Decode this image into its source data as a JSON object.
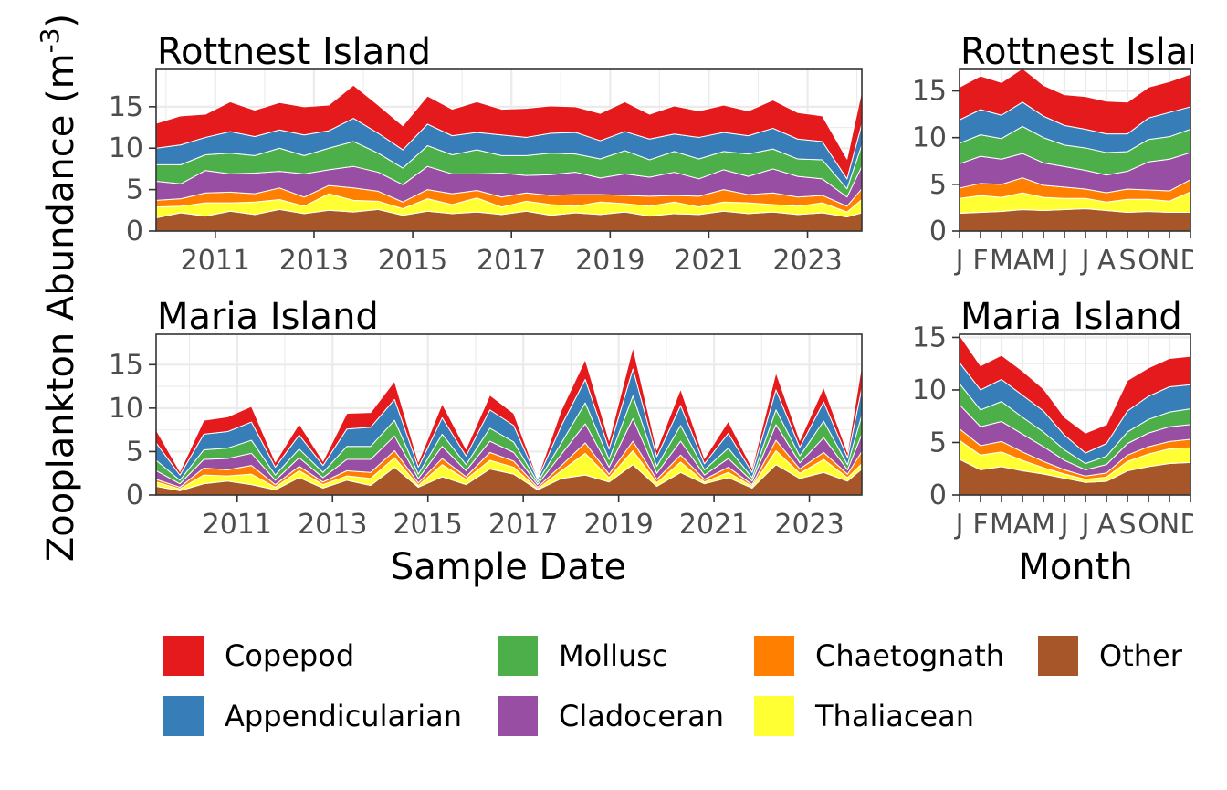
{
  "figure": {
    "y_axis_label": "Zooplankton Abundance (m",
    "y_axis_label_sup": "-3",
    "y_axis_label_end": ")",
    "x_label_timeseries": "Sample Date",
    "x_label_climatology": "Month"
  },
  "legend": {
    "items": [
      {
        "label": "Copepod",
        "color": "#e41a1c"
      },
      {
        "label": "Mollusc",
        "color": "#4daf4a"
      },
      {
        "label": "Chaetognath",
        "color": "#ff7f00"
      },
      {
        "label": "Other",
        "color": "#a65628"
      },
      {
        "label": "Appendicularian",
        "color": "#377eb8"
      },
      {
        "label": "Cladoceran",
        "color": "#984ea3"
      },
      {
        "label": "Thaliacean",
        "color": "#ffff33"
      }
    ]
  },
  "chart_data": [
    {
      "type": "area",
      "stacked": true,
      "title": "Rottnest Island",
      "xlabel": "",
      "ylabel": "",
      "x_ticks": [
        "2011",
        "2013",
        "2015",
        "2017",
        "2019",
        "2021",
        "2023"
      ],
      "y_ticks": [
        "0",
        "5",
        "10",
        "15"
      ],
      "xlim": [
        2009.8,
        2024.1
      ],
      "ylim": [
        0,
        19.5
      ],
      "grid": true,
      "x": [
        2009.8,
        2010.3,
        2010.8,
        2011.3,
        2011.8,
        2012.3,
        2012.8,
        2013.3,
        2013.8,
        2014.3,
        2014.8,
        2015.3,
        2015.8,
        2016.3,
        2016.8,
        2017.3,
        2017.8,
        2018.3,
        2018.8,
        2019.3,
        2019.8,
        2020.3,
        2020.8,
        2021.3,
        2021.8,
        2022.3,
        2022.8,
        2023.3,
        2023.8,
        2024.1
      ],
      "series": [
        {
          "name": "Other",
          "values": [
            1.6,
            2.2,
            1.8,
            2.4,
            2.0,
            2.6,
            2.1,
            2.5,
            2.3,
            2.6,
            1.9,
            2.4,
            2.1,
            2.3,
            2.0,
            2.4,
            1.9,
            2.2,
            2.0,
            2.3,
            1.8,
            2.1,
            2.0,
            2.4,
            2.1,
            2.3,
            2.0,
            2.2,
            1.7,
            2.2
          ]
        },
        {
          "name": "Thaliacean",
          "values": [
            1.3,
            0.8,
            1.6,
            1.0,
            1.5,
            1.2,
            0.9,
            2.0,
            1.4,
            1.0,
            0.8,
            1.5,
            1.1,
            1.7,
            0.9,
            1.2,
            1.3,
            0.8,
            1.5,
            1.0,
            1.2,
            1.4,
            0.9,
            1.1,
            1.3,
            0.9,
            1.0,
            1.2,
            0.6,
            1.6
          ]
        },
        {
          "name": "Chaetognath",
          "values": [
            0.8,
            0.9,
            1.2,
            1.3,
            1.0,
            1.4,
            1.1,
            1.0,
            1.5,
            1.2,
            0.8,
            1.1,
            1.3,
            0.9,
            1.2,
            1.0,
            1.1,
            1.4,
            0.9,
            1.0,
            1.2,
            0.8,
            1.3,
            1.5,
            1.0,
            1.4,
            1.1,
            0.9,
            0.7,
            1.3
          ]
        },
        {
          "name": "Cladoceran",
          "values": [
            2.3,
            1.8,
            2.7,
            2.2,
            2.5,
            2.0,
            2.8,
            1.9,
            2.6,
            2.3,
            2.1,
            2.8,
            2.4,
            2.0,
            2.9,
            2.1,
            2.5,
            2.7,
            2.0,
            2.6,
            2.3,
            2.8,
            2.1,
            2.4,
            2.2,
            2.9,
            2.5,
            2.0,
            1.1,
            2.7
          ]
        },
        {
          "name": "Mollusc",
          "values": [
            2.0,
            2.3,
            1.9,
            2.5,
            2.1,
            2.8,
            2.2,
            2.6,
            3.0,
            2.3,
            2.0,
            2.5,
            2.3,
            2.9,
            2.1,
            2.4,
            2.6,
            2.2,
            2.3,
            2.8,
            2.1,
            2.5,
            2.4,
            2.2,
            2.7,
            2.4,
            2.1,
            2.3,
            1.0,
            2.6
          ]
        },
        {
          "name": "Appendicularian",
          "values": [
            2.0,
            2.4,
            2.1,
            2.6,
            2.3,
            2.2,
            2.5,
            2.1,
            2.8,
            2.4,
            2.2,
            2.6,
            2.3,
            2.1,
            2.5,
            2.2,
            2.4,
            2.6,
            2.2,
            2.3,
            2.5,
            2.1,
            2.6,
            2.3,
            2.2,
            2.5,
            2.4,
            2.2,
            1.2,
            2.5
          ]
        },
        {
          "name": "Copepod",
          "values": [
            3.0,
            3.5,
            2.8,
            3.6,
            3.2,
            3.3,
            3.4,
            3.1,
            4.0,
            3.4,
            2.9,
            3.4,
            3.2,
            3.7,
            3.1,
            3.5,
            3.3,
            3.1,
            3.3,
            3.6,
            3.0,
            3.4,
            3.2,
            3.3,
            3.0,
            3.4,
            3.2,
            3.1,
            2.4,
            4.0
          ]
        }
      ]
    },
    {
      "type": "area",
      "stacked": true,
      "title": "Rottnest Island",
      "xlabel": "",
      "ylabel": "",
      "x_ticks": [
        "J",
        "F",
        "M",
        "A",
        "M",
        "J",
        "J",
        "A",
        "S",
        "O",
        "N",
        "D"
      ],
      "y_ticks": [
        "0",
        "5",
        "10",
        "15"
      ],
      "ylim": [
        0,
        17.3
      ],
      "grid": true,
      "x": [
        1,
        2,
        3,
        4,
        5,
        6,
        7,
        8,
        9,
        10,
        11,
        12
      ],
      "series": [
        {
          "name": "Other",
          "values": [
            1.9,
            2.0,
            2.1,
            2.3,
            2.2,
            2.3,
            2.4,
            2.2,
            2.0,
            2.1,
            2.0,
            2.0
          ]
        },
        {
          "name": "Thaliacean",
          "values": [
            1.6,
            1.8,
            1.5,
            1.8,
            1.4,
            1.2,
            1.1,
            0.9,
            1.4,
            1.3,
            1.2,
            2.2
          ]
        },
        {
          "name": "Chaetognath",
          "values": [
            1.1,
            1.3,
            1.4,
            1.6,
            1.3,
            1.2,
            1.0,
            1.0,
            1.1,
            1.0,
            1.1,
            1.3
          ]
        },
        {
          "name": "Cladoceran",
          "values": [
            2.6,
            2.9,
            2.7,
            2.6,
            2.4,
            2.2,
            2.0,
            1.9,
            1.9,
            3.0,
            3.4,
            2.9
          ]
        },
        {
          "name": "Mollusc",
          "values": [
            2.2,
            2.3,
            2.2,
            2.9,
            2.7,
            2.3,
            2.4,
            2.4,
            2.1,
            2.4,
            2.4,
            2.5
          ]
        },
        {
          "name": "Appendicularian",
          "values": [
            2.5,
            2.7,
            2.5,
            2.6,
            2.3,
            2.1,
            2.0,
            2.0,
            1.9,
            2.3,
            2.6,
            2.4
          ]
        },
        {
          "name": "Copepod",
          "values": [
            3.5,
            3.6,
            3.5,
            3.6,
            3.3,
            3.3,
            3.5,
            3.5,
            3.4,
            3.3,
            3.3,
            3.5
          ]
        }
      ]
    },
    {
      "type": "area",
      "stacked": true,
      "title": "Maria Island",
      "xlabel": "Sample Date",
      "ylabel": "",
      "x_ticks": [
        "2011",
        "2013",
        "2015",
        "2017",
        "2019",
        "2021",
        "2023"
      ],
      "y_ticks": [
        "0",
        "5",
        "10",
        "15"
      ],
      "xlim": [
        2009.3,
        2024.1
      ],
      "ylim": [
        0,
        18.5
      ],
      "grid": true,
      "x": [
        2009.3,
        2009.8,
        2010.3,
        2010.8,
        2011.3,
        2011.8,
        2012.3,
        2012.8,
        2013.3,
        2013.8,
        2014.3,
        2014.8,
        2015.3,
        2015.8,
        2016.3,
        2016.8,
        2017.3,
        2017.8,
        2018.3,
        2018.8,
        2019.3,
        2019.8,
        2020.3,
        2020.8,
        2021.3,
        2021.8,
        2022.3,
        2022.8,
        2023.3,
        2023.8,
        2024.1
      ],
      "series": [
        {
          "name": "Other",
          "values": [
            1.0,
            0.5,
            1.3,
            1.6,
            1.2,
            0.6,
            2.0,
            0.8,
            1.7,
            1.1,
            3.2,
            0.9,
            2.1,
            1.2,
            3.0,
            2.4,
            0.6,
            1.9,
            2.3,
            1.5,
            3.5,
            1.0,
            2.6,
            1.3,
            2.0,
            0.8,
            3.5,
            1.9,
            2.6,
            1.6,
            3.0
          ]
        },
        {
          "name": "Thaliacean",
          "values": [
            0.5,
            0.2,
            1.0,
            0.6,
            1.2,
            0.3,
            0.8,
            0.4,
            0.5,
            0.8,
            1.1,
            0.2,
            1.4,
            0.6,
            1.0,
            0.8,
            0.1,
            0.9,
            2.5,
            0.5,
            1.6,
            0.4,
            1.2,
            0.2,
            0.6,
            0.2,
            1.6,
            0.6,
            1.5,
            0.4,
            0.6
          ]
        },
        {
          "name": "Chaetognath",
          "values": [
            0.3,
            0.2,
            0.8,
            0.7,
            1.0,
            0.3,
            0.5,
            0.3,
            0.6,
            0.7,
            0.8,
            0.3,
            0.7,
            0.3,
            0.9,
            0.7,
            0.2,
            0.6,
            1.2,
            0.4,
            1.1,
            0.4,
            0.8,
            0.3,
            0.6,
            0.2,
            1.2,
            0.5,
            0.8,
            0.4,
            1.4
          ]
        },
        {
          "name": "Cladoceran",
          "values": [
            1.0,
            0.4,
            1.0,
            1.3,
            1.4,
            0.5,
            1.0,
            0.5,
            1.3,
            1.5,
            1.7,
            0.5,
            1.4,
            0.7,
            1.3,
            1.0,
            0.3,
            1.3,
            2.2,
            0.8,
            2.6,
            0.7,
            1.6,
            0.5,
            1.0,
            0.4,
            1.8,
            0.7,
            1.7,
            0.5,
            2.0
          ]
        },
        {
          "name": "Mollusc",
          "values": [
            1.2,
            0.4,
            1.1,
            1.2,
            1.5,
            0.6,
            1.0,
            0.6,
            1.5,
            1.5,
            1.8,
            0.5,
            1.4,
            0.7,
            1.5,
            1.2,
            0.3,
            1.3,
            2.4,
            0.9,
            2.6,
            0.8,
            1.8,
            0.6,
            1.2,
            0.4,
            1.7,
            0.8,
            1.9,
            0.6,
            2.2
          ]
        },
        {
          "name": "Appendicularian",
          "values": [
            2.0,
            0.6,
            1.8,
            1.9,
            2.1,
            0.9,
            1.6,
            0.8,
            2.0,
            2.2,
            2.4,
            0.8,
            1.9,
            1.0,
            2.1,
            1.9,
            0.3,
            2.0,
            2.7,
            1.2,
            3.1,
            1.1,
            2.3,
            0.7,
            1.7,
            0.6,
            2.3,
            1.0,
            2.2,
            0.8,
            3.1
          ]
        },
        {
          "name": "Copepod",
          "values": [
            1.5,
            0.4,
            1.6,
            1.7,
            1.8,
            0.6,
            1.3,
            0.5,
            1.8,
            1.7,
            2.1,
            0.6,
            1.6,
            0.8,
            1.7,
            1.4,
            0.2,
            1.8,
            2.3,
            1.0,
            2.5,
            0.8,
            1.9,
            0.6,
            1.4,
            0.5,
            2.0,
            0.8,
            1.7,
            0.6,
            2.7
          ]
        }
      ]
    },
    {
      "type": "area",
      "stacked": true,
      "title": "Maria Island",
      "xlabel": "Month",
      "ylabel": "",
      "x_ticks": [
        "J",
        "F",
        "M",
        "A",
        "M",
        "J",
        "J",
        "A",
        "S",
        "O",
        "N",
        "D"
      ],
      "y_ticks": [
        "0",
        "5",
        "10",
        "15"
      ],
      "ylim": [
        0,
        15.3
      ],
      "grid": true,
      "x": [
        1,
        2,
        3,
        4,
        5,
        6,
        7,
        8,
        9,
        10,
        11,
        12
      ],
      "series": [
        {
          "name": "Other",
          "values": [
            3.4,
            2.4,
            2.7,
            2.3,
            2.0,
            1.6,
            1.2,
            1.3,
            2.3,
            2.7,
            3.0,
            3.1
          ]
        },
        {
          "name": "Thaliacean",
          "values": [
            1.8,
            1.4,
            1.4,
            1.0,
            0.6,
            0.4,
            0.3,
            0.4,
            0.9,
            1.2,
            1.4,
            1.4
          ]
        },
        {
          "name": "Chaetognath",
          "values": [
            1.1,
            0.9,
            1.0,
            0.8,
            0.6,
            0.4,
            0.3,
            0.4,
            0.6,
            0.7,
            0.7,
            0.8
          ]
        },
        {
          "name": "Cladoceran",
          "values": [
            2.3,
            1.8,
            1.9,
            1.7,
            1.4,
            0.9,
            0.6,
            0.8,
            1.1,
            1.3,
            1.4,
            1.4
          ]
        },
        {
          "name": "Mollusc",
          "values": [
            2.0,
            1.6,
            1.9,
            1.6,
            1.4,
            1.0,
            0.6,
            0.8,
            1.1,
            1.3,
            1.4,
            1.5
          ]
        },
        {
          "name": "Appendicularian",
          "values": [
            2.0,
            1.9,
            2.1,
            2.1,
            2.0,
            1.4,
            1.0,
            1.2,
            2.0,
            2.2,
            2.4,
            2.3
          ]
        },
        {
          "name": "Copepod",
          "values": [
            2.6,
            2.3,
            2.3,
            2.3,
            2.1,
            1.7,
            1.9,
            1.8,
            2.9,
            2.7,
            2.7,
            2.7
          ]
        }
      ]
    }
  ]
}
